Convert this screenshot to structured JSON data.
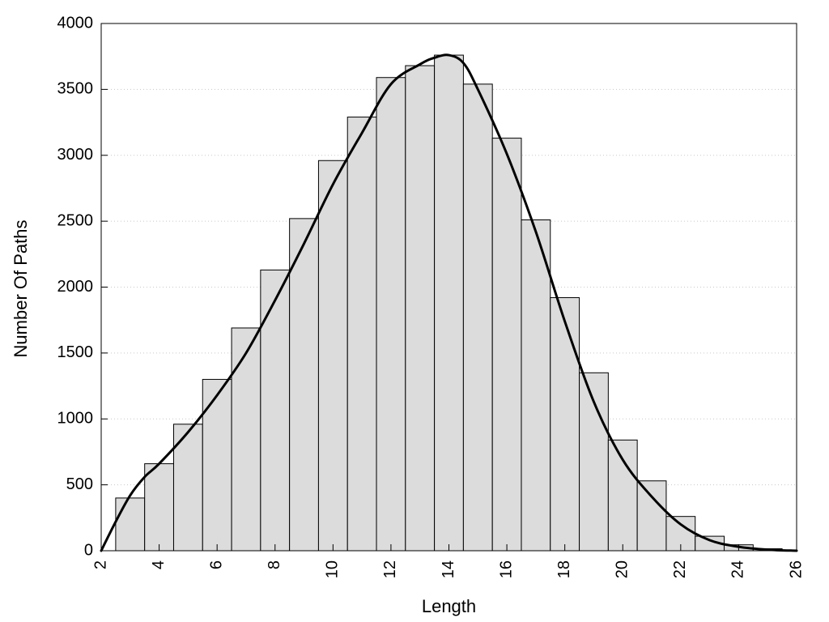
{
  "chart_data": {
    "type": "bar",
    "title": "",
    "xlabel": "Length",
    "ylabel": "Number Of Paths",
    "xlim": [
      2,
      26
    ],
    "ylim": [
      0,
      4000
    ],
    "x_ticks": [
      2,
      4,
      6,
      8,
      10,
      12,
      14,
      16,
      18,
      20,
      22,
      24,
      26
    ],
    "y_ticks": [
      0,
      500,
      1000,
      1500,
      2000,
      2500,
      3000,
      3500,
      4000
    ],
    "grid": "horizontal dotted",
    "legend": "none",
    "bar_width": 1,
    "bars": {
      "x": [
        3,
        4,
        5,
        6,
        7,
        8,
        9,
        10,
        11,
        12,
        13,
        14,
        15,
        16,
        17,
        18,
        19,
        20,
        21,
        22,
        23,
        24,
        25
      ],
      "values": [
        400,
        660,
        960,
        1300,
        1690,
        2130,
        2520,
        2960,
        3290,
        3590,
        3680,
        3760,
        3540,
        3130,
        2510,
        1920,
        1350,
        840,
        530,
        260,
        110,
        45,
        15
      ]
    },
    "density_curve": {
      "x": [
        2,
        2.5,
        3,
        3.5,
        4,
        5,
        6,
        7,
        8,
        9,
        10,
        11,
        12,
        13,
        13.5,
        14,
        14.5,
        15,
        16,
        17,
        18,
        19,
        20,
        21,
        22,
        23,
        24,
        25,
        26
      ],
      "y": [
        0,
        220,
        420,
        560,
        660,
        900,
        1180,
        1500,
        1900,
        2330,
        2780,
        3170,
        3540,
        3690,
        3740,
        3760,
        3700,
        3500,
        3010,
        2420,
        1740,
        1130,
        690,
        410,
        200,
        80,
        30,
        8,
        0
      ]
    },
    "colors": {
      "bar_fill": "#dcdcdc",
      "bar_stroke": "#000000",
      "curve": "#000000",
      "grid": "#c8c8c8"
    }
  }
}
